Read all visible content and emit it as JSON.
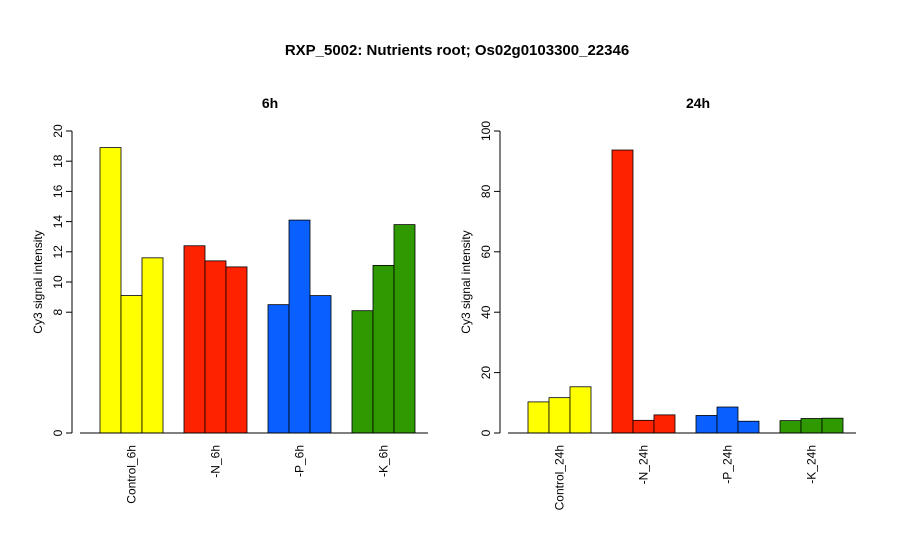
{
  "figure_title": "RXP_5002: Nutrients root; Os02g0103300_22346",
  "chart_data": [
    {
      "type": "bar",
      "title": "6h",
      "ylabel": "Cy3 signal intensity",
      "xlabel": "",
      "ylim": [
        0,
        20
      ],
      "yticks": [
        0,
        8,
        10,
        12,
        14,
        16,
        18,
        20
      ],
      "categories": [
        "Control_6h",
        "-N_6h",
        "-P_6h",
        "-K_6h"
      ],
      "group_colors": [
        "#ffff00",
        "#ff2200",
        "#0a60ff",
        "#2e9900"
      ],
      "values": [
        [
          18.9,
          9.1,
          11.6
        ],
        [
          12.4,
          11.4,
          11.0
        ],
        [
          8.5,
          14.1,
          9.1
        ],
        [
          8.1,
          11.1,
          13.8
        ]
      ]
    },
    {
      "type": "bar",
      "title": "24h",
      "ylabel": "Cy3 signal intensity",
      "xlabel": "",
      "ylim": [
        0,
        100
      ],
      "yticks": [
        0,
        20,
        40,
        60,
        80,
        100
      ],
      "categories": [
        "Control_24h",
        "-N_24h",
        "-P_24h",
        "-K_24h"
      ],
      "group_colors": [
        "#ffff00",
        "#ff2200",
        "#0a60ff",
        "#2e9900"
      ],
      "values": [
        [
          10.3,
          11.7,
          15.3
        ],
        [
          93.7,
          4.2,
          6.0
        ],
        [
          5.8,
          8.6,
          3.9
        ],
        [
          4.1,
          4.8,
          4.9
        ]
      ]
    }
  ]
}
